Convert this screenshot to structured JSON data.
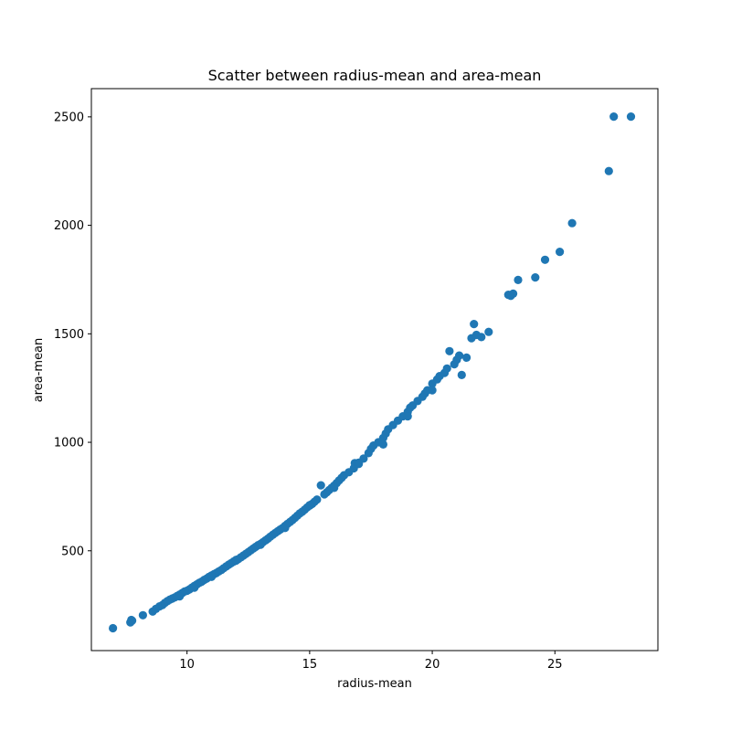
{
  "chart_data": {
    "type": "scatter",
    "title": "Scatter between radius-mean and area-mean",
    "xlabel": "radius-mean",
    "ylabel": "area-mean",
    "xlim": [
      6.1,
      29.2
    ],
    "ylim": [
      40,
      2630
    ],
    "xticks": [
      10,
      15,
      20,
      25
    ],
    "yticks": [
      500,
      1000,
      1500,
      2000,
      2500
    ],
    "grid": false,
    "marker_color": "#1f77b4",
    "series": [
      {
        "x": [
          6.98,
          7.69,
          7.73,
          7.76,
          8.2,
          8.6,
          8.73,
          8.88,
          9.0,
          9.1,
          9.2,
          9.3,
          9.4,
          9.5,
          9.6,
          9.7,
          9.8,
          9.9,
          10.0,
          10.1,
          10.2,
          10.3,
          10.4,
          10.5,
          10.6,
          10.7,
          10.8,
          10.9,
          11.0,
          11.1,
          11.2,
          11.3,
          11.4,
          11.5,
          11.6,
          11.7,
          11.8,
          11.9,
          12.0,
          12.1,
          12.2,
          12.3,
          12.4,
          12.5,
          12.6,
          12.7,
          12.8,
          12.9,
          13.0,
          13.1,
          13.2,
          13.3,
          13.4,
          13.5,
          13.6,
          13.7,
          13.8,
          13.9,
          14.0,
          14.1,
          14.2,
          14.3,
          14.4,
          14.5,
          14.6,
          14.7,
          14.8,
          14.9,
          15.0,
          15.1,
          15.2,
          15.3,
          15.46,
          15.6,
          15.7,
          15.8,
          15.9,
          16.0,
          16.1,
          16.2,
          16.3,
          16.4,
          16.6,
          16.8,
          16.84,
          17.0,
          17.2,
          17.4,
          17.5,
          17.6,
          17.8,
          18.0,
          18.1,
          18.2,
          18.4,
          18.6,
          18.8,
          19.0,
          19.1,
          19.2,
          19.4,
          19.6,
          19.7,
          19.8,
          20.0,
          20.2,
          20.3,
          20.5,
          20.6,
          20.7,
          20.9,
          21.0,
          21.1,
          21.2,
          21.4,
          21.6,
          21.7,
          21.8,
          22.0,
          22.3,
          23.1,
          23.2,
          23.3,
          23.5,
          24.2,
          24.6,
          25.2,
          25.7,
          27.2,
          27.4,
          28.1,
          12.0,
          13.0,
          14.0,
          16.0,
          17.0,
          18.0,
          19.0,
          20.0,
          11.0,
          15.0,
          9.7,
          10.3
        ],
        "y": [
          143,
          170,
          181,
          178,
          203,
          220,
          232,
          244,
          250,
          260,
          268,
          275,
          280,
          285,
          292,
          298,
          305,
          312,
          316,
          322,
          330,
          338,
          345,
          352,
          358,
          366,
          372,
          380,
          386,
          392,
          398,
          405,
          412,
          420,
          428,
          436,
          443,
          450,
          455,
          462,
          470,
          478,
          486,
          494,
          502,
          510,
          518,
          526,
          532,
          540,
          548,
          556,
          565,
          574,
          582,
          590,
          598,
          605,
          615,
          624,
          633,
          642,
          652,
          662,
          672,
          680,
          690,
          700,
          708,
          716,
          726,
          736,
          802,
          760,
          770,
          780,
          790,
          800,
          812,
          824,
          836,
          848,
          862,
          880,
          904,
          906,
          925,
          950,
          970,
          985,
          1000,
          1020,
          1040,
          1060,
          1080,
          1100,
          1120,
          1140,
          1160,
          1170,
          1190,
          1210,
          1225,
          1240,
          1270,
          1290,
          1305,
          1320,
          1340,
          1420,
          1360,
          1380,
          1400,
          1310,
          1390,
          1480,
          1545,
          1495,
          1485,
          1509,
          1680,
          1675,
          1685,
          1748,
          1760,
          1841,
          1878,
          2010,
          2250,
          2501,
          2501,
          458,
          528,
          605,
          790,
          900,
          990,
          1120,
          1240,
          380,
          710,
          290,
          330
        ]
      }
    ]
  }
}
